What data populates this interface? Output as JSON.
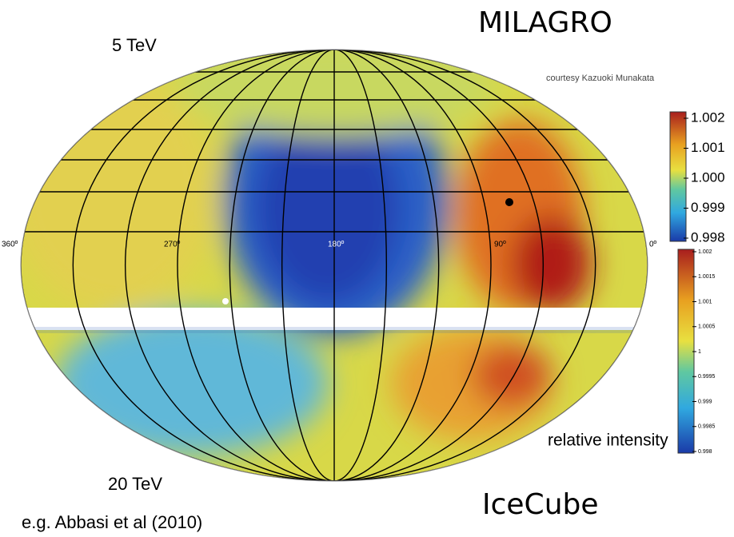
{
  "header": {
    "experiment_top": "MILAGRO",
    "energy_top": "5 TeV",
    "credit": "courtesy Kazuoki Munakata"
  },
  "map": {
    "longitude_labels": [
      "360º",
      "270º",
      "180º",
      "90º",
      "0º"
    ]
  },
  "colorbar_top": {
    "ticks": [
      "1.002",
      "1.001",
      "1.000",
      "0.999",
      "0.998"
    ]
  },
  "colorbar_bottom": {
    "ticks": [
      "1.002",
      "1.0015",
      "1.001",
      "1.0005",
      "1",
      "0.9995",
      "0.999",
      "0.9985",
      "0.998"
    ],
    "label": "relative intensity"
  },
  "footer": {
    "energy_bottom": "20 TeV",
    "experiment_bottom": "IceCube",
    "reference": "e.g. Abbasi et al (2010)"
  }
}
